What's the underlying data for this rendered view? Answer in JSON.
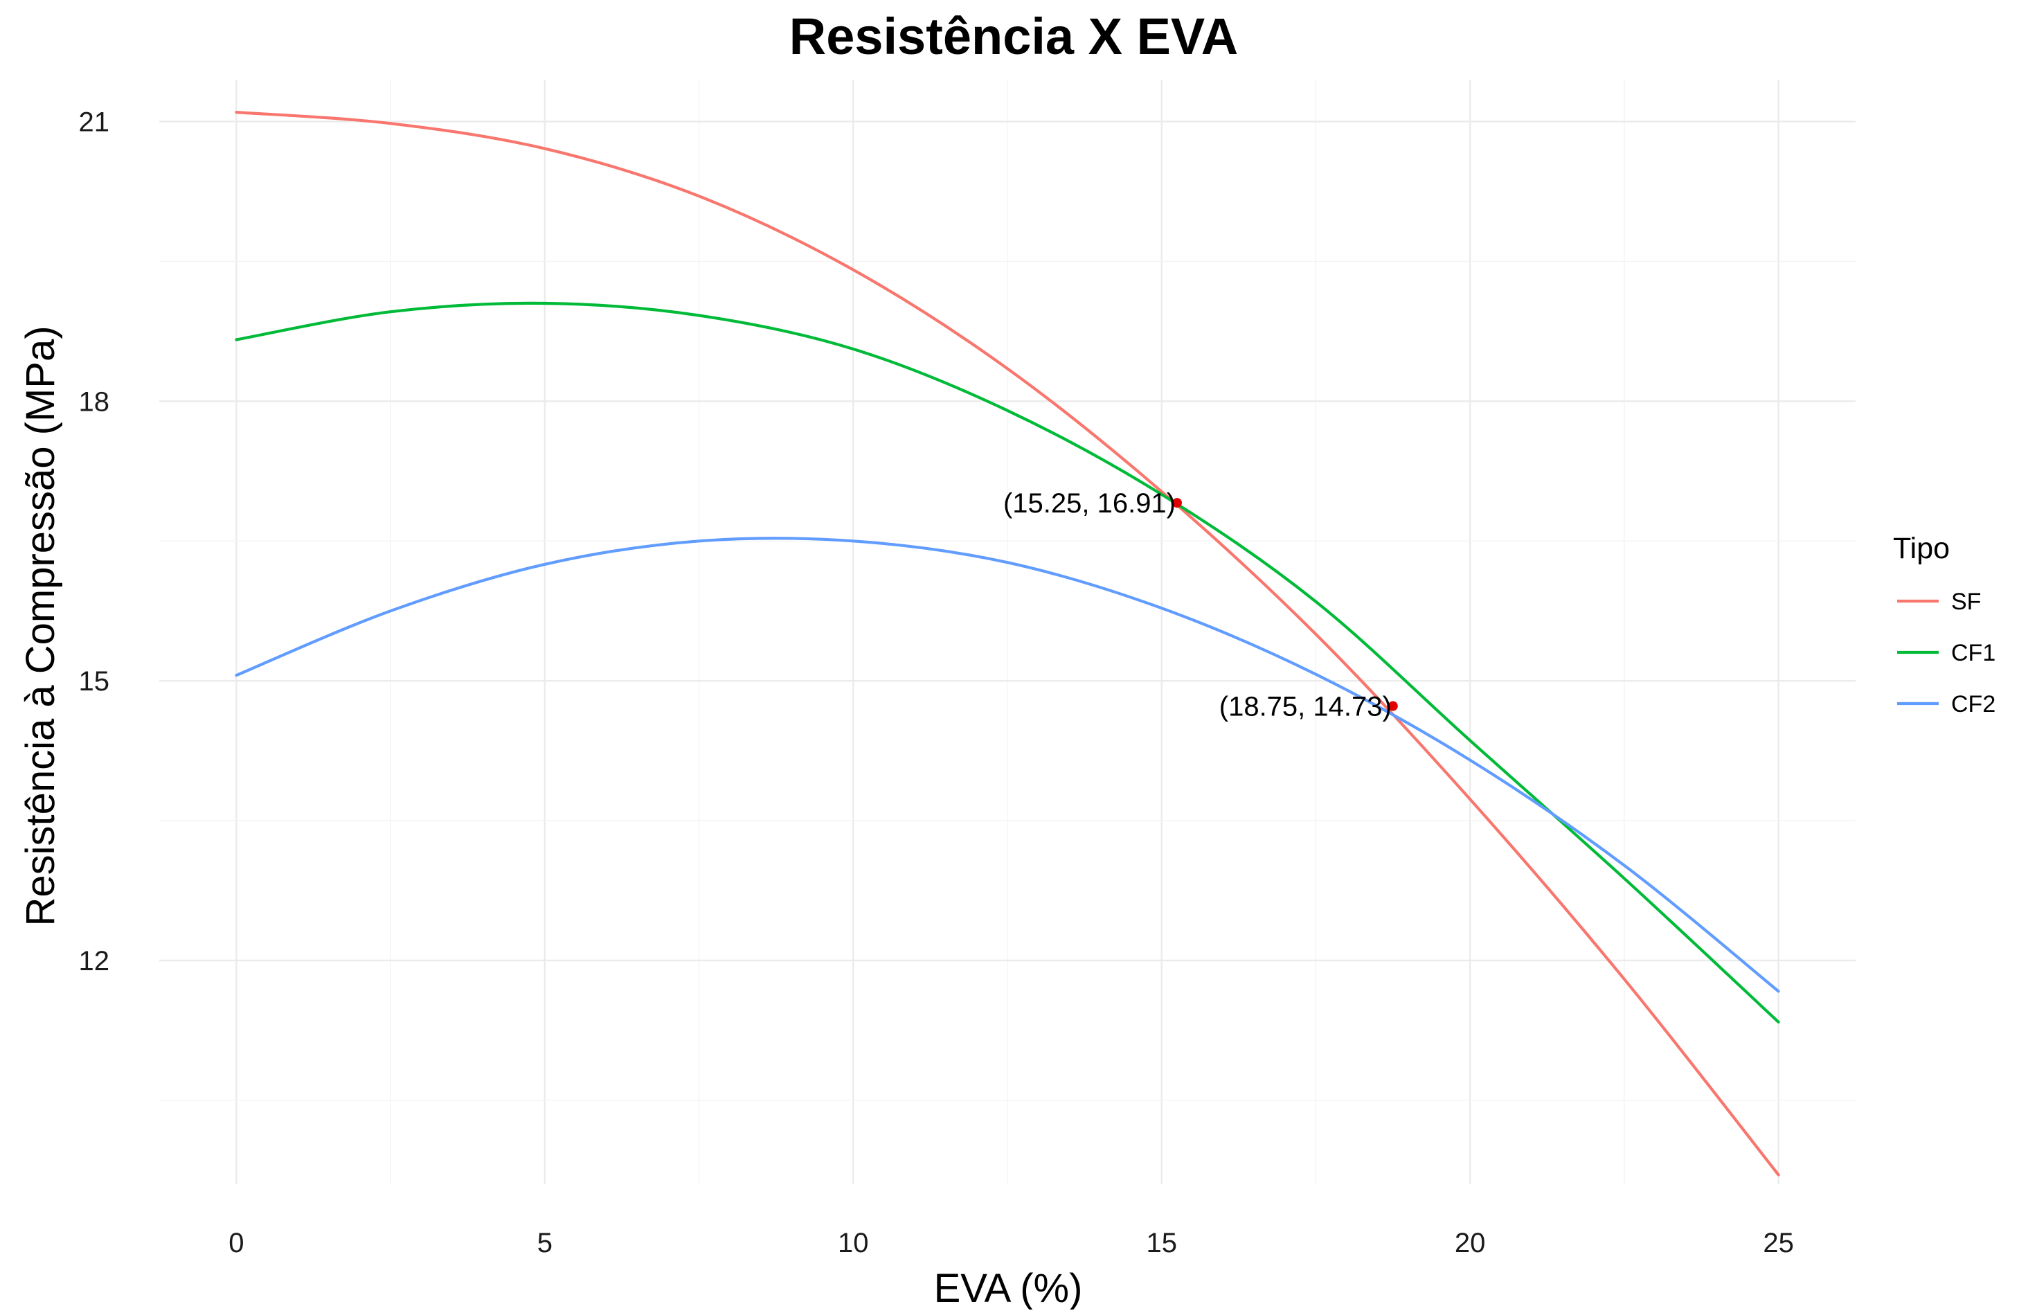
{
  "chart_data": {
    "type": "line",
    "title": "Resistência X EVA",
    "xlabel": "EVA (%)",
    "ylabel": "Resistência à Compressão (MPa)",
    "xlim": [
      -1.25,
      26.25
    ],
    "ylim": [
      9.6,
      21.45
    ],
    "x_ticks": [
      0,
      5,
      10,
      15,
      20,
      25
    ],
    "y_ticks": [
      12,
      15,
      18,
      21
    ],
    "grid": true,
    "legend": {
      "title": "Tipo",
      "position": "right"
    },
    "series": [
      {
        "name": "SF",
        "color": "#F8766D",
        "x": [
          0,
          2.5,
          5,
          7.5,
          10,
          12.5,
          15,
          17.5,
          20,
          22.5,
          25
        ],
        "y": [
          21.1,
          20.98,
          20.71,
          20.2,
          19.41,
          18.35,
          17.03,
          15.5,
          13.73,
          11.8,
          9.7
        ]
      },
      {
        "name": "CF1",
        "color": "#00BA38",
        "x": [
          0,
          2.5,
          5,
          7.5,
          10,
          12.5,
          15,
          17.5,
          20,
          22.5,
          25
        ],
        "y": [
          18.66,
          18.96,
          19.05,
          18.92,
          18.56,
          17.9,
          17.0,
          15.85,
          14.36,
          12.88,
          11.34
        ]
      },
      {
        "name": "CF2",
        "color": "#619CFF",
        "x": [
          0,
          2.5,
          5,
          7.5,
          10,
          12.5,
          15,
          17.5,
          20,
          22.5,
          25
        ],
        "y": [
          15.06,
          15.75,
          16.25,
          16.5,
          16.5,
          16.27,
          15.78,
          15.07,
          14.15,
          13.02,
          11.67
        ]
      }
    ],
    "annotations": [
      {
        "x": 15.25,
        "y": 16.91,
        "label": "(15.25, 16.91)",
        "color": "#e00000"
      },
      {
        "x": 18.75,
        "y": 14.73,
        "label": "(18.75, 14.73)",
        "color": "#e00000"
      }
    ]
  }
}
